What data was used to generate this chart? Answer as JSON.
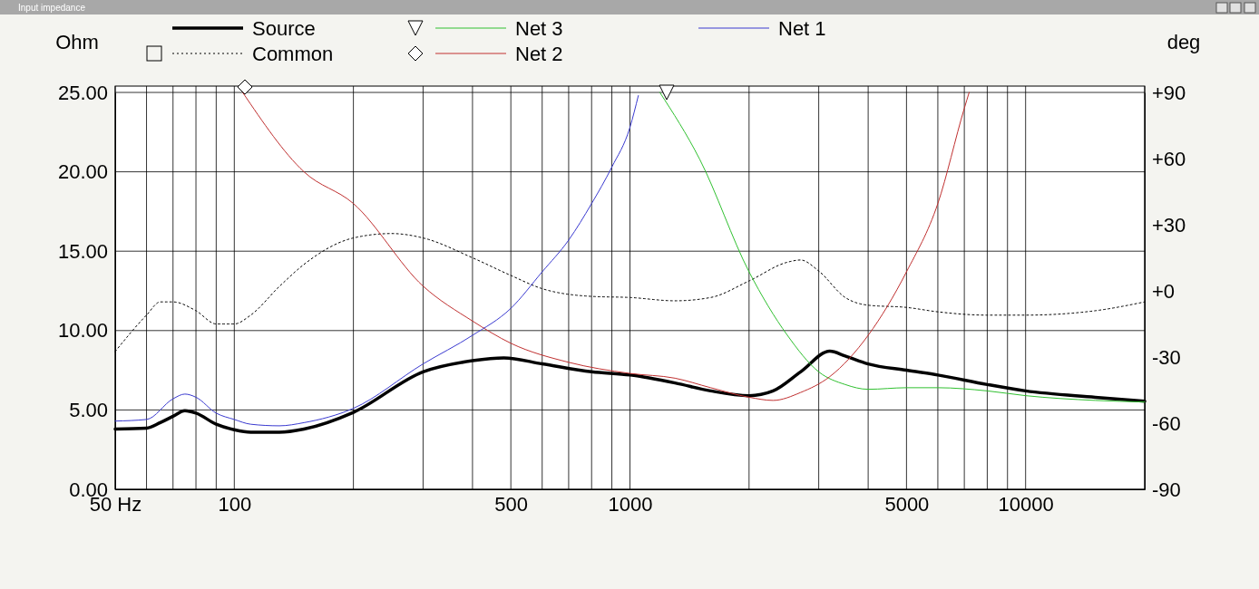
{
  "chart_data": {
    "type": "line",
    "title": "Input impedance",
    "ylabel": "Ohm",
    "y2label": "deg",
    "log": "x",
    "grid": true,
    "legend": "top",
    "xlim": [
      50,
      20000
    ],
    "xticks": [
      {
        "value": 50,
        "label": "50 Hz"
      },
      {
        "value": 60,
        "label": null
      },
      {
        "value": 70,
        "label": null
      },
      {
        "value": 80,
        "label": null
      },
      {
        "value": 90,
        "label": null
      },
      100,
      {
        "value": 200,
        "label": null
      },
      {
        "value": 300,
        "label": null
      },
      {
        "value": 400,
        "label": null
      },
      500,
      {
        "value": 600,
        "label": null
      },
      {
        "value": 700,
        "label": null
      },
      {
        "value": 800,
        "label": null
      },
      {
        "value": 900,
        "label": null
      },
      1000,
      {
        "value": 2000,
        "label": null
      },
      {
        "value": 3000,
        "label": null
      },
      {
        "value": 4000,
        "label": null
      },
      5000,
      {
        "value": 6000,
        "label": null
      },
      {
        "value": 7000,
        "label": null
      },
      {
        "value": 8000,
        "label": null
      },
      {
        "value": 9000,
        "label": null
      },
      10000,
      {
        "value": 20000,
        "label": null
      }
    ],
    "ylim": [
      0,
      25
    ],
    "yticks": [
      {
        "value": 0,
        "label": "0.00"
      },
      {
        "value": 5,
        "label": "5.00"
      },
      {
        "value": 10,
        "label": "10.00"
      },
      {
        "value": 15,
        "label": "15.00"
      },
      {
        "value": 20,
        "label": "20.00"
      },
      {
        "value": 25,
        "label": "25.00"
      }
    ],
    "y2lim": [
      -90,
      90
    ],
    "y2ticks": [
      {
        "value": -90,
        "label": "-90"
      },
      {
        "value": -60,
        "label": "-60"
      },
      {
        "value": -30,
        "label": "-30"
      },
      {
        "value": 0,
        "label": "+0"
      },
      {
        "value": 30,
        "label": "+30"
      },
      {
        "value": 60,
        "label": "+60"
      },
      {
        "value": 90,
        "label": "+90"
      }
    ],
    "series": [
      {
        "name": "Source",
        "color": "#000000",
        "x": [
          50,
          60,
          65,
          70,
          75,
          80,
          90,
          100,
          110,
          130,
          150,
          200,
          300,
          400,
          480,
          600,
          800,
          1000,
          1300,
          1600,
          2000,
          2300,
          2700,
          3200,
          3500,
          4000,
          5000,
          6000,
          8000,
          10000,
          15000,
          20000
        ],
        "values": [
          3.8,
          3.85,
          4.2,
          4.6,
          4.95,
          4.8,
          4.1,
          3.75,
          3.6,
          3.6,
          3.8,
          4.85,
          7.4,
          8.1,
          8.28,
          7.9,
          7.4,
          7.2,
          6.7,
          6.2,
          5.9,
          6.2,
          7.4,
          8.7,
          8.4,
          7.9,
          7.5,
          7.2,
          6.6,
          6.2,
          5.8,
          5.55
        ]
      },
      {
        "name": "Common",
        "color": "#000000",
        "axis": "y2",
        "line_style": "dotted",
        "x": [
          50,
          60,
          65,
          70,
          80,
          90,
          100,
          110,
          130,
          150,
          200,
          250,
          300,
          400,
          500,
          600,
          800,
          1000,
          1300,
          1600,
          2000,
          2500,
          2700,
          3000,
          3500,
          4000,
          5000,
          6000,
          8000,
          10000,
          15000,
          20000
        ],
        "values": [
          -27.5,
          -11,
          -5,
          -5,
          -9,
          -15,
          -15,
          -11,
          2,
          12,
          24,
          26,
          24,
          15,
          7,
          1,
          -2.5,
          -3,
          -4.5,
          -3,
          4.5,
          13,
          14,
          9,
          -3,
          -6.5,
          -7.5,
          -9.5,
          -11,
          -11,
          -9,
          -5
        ]
      },
      {
        "name": "Net 3",
        "color": "#30c030",
        "x": [
          1190,
          1500,
          2000,
          2500,
          3000,
          3500,
          4000,
          5000,
          6000,
          8000,
          10000,
          15000,
          20000
        ],
        "values": [
          25,
          20.8,
          13.7,
          9.7,
          7.4,
          6.6,
          6.3,
          6.4,
          6.4,
          6.2,
          5.9,
          5.6,
          5.5
        ]
      },
      {
        "name": "Net 2",
        "color": "#c03030",
        "x": [
          105,
          150,
          200,
          300,
          400,
          500,
          700,
          1000,
          1300,
          1600,
          2000,
          2300,
          2700,
          3200,
          4000,
          5000,
          6000,
          7000,
          7200
        ],
        "values": [
          25,
          20,
          18,
          12.8,
          10.6,
          9.2,
          8,
          7.3,
          7,
          6.4,
          5.8,
          5.6,
          6.1,
          7.1,
          9.7,
          13.7,
          18,
          24,
          25
        ]
      },
      {
        "name": "Net 1",
        "color": "#3a3ad0",
        "x": [
          50,
          60,
          70,
          75,
          80,
          90,
          100,
          110,
          130,
          150,
          200,
          300,
          400,
          500,
          600,
          700,
          800,
          900,
          1000,
          1050
        ],
        "values": [
          4.3,
          4.4,
          5.7,
          6,
          5.8,
          4.8,
          4.4,
          4.1,
          4,
          4.2,
          5.1,
          7.9,
          9.7,
          11.4,
          13.7,
          15.7,
          18,
          20.3,
          22.8,
          24.8
        ]
      }
    ]
  }
}
